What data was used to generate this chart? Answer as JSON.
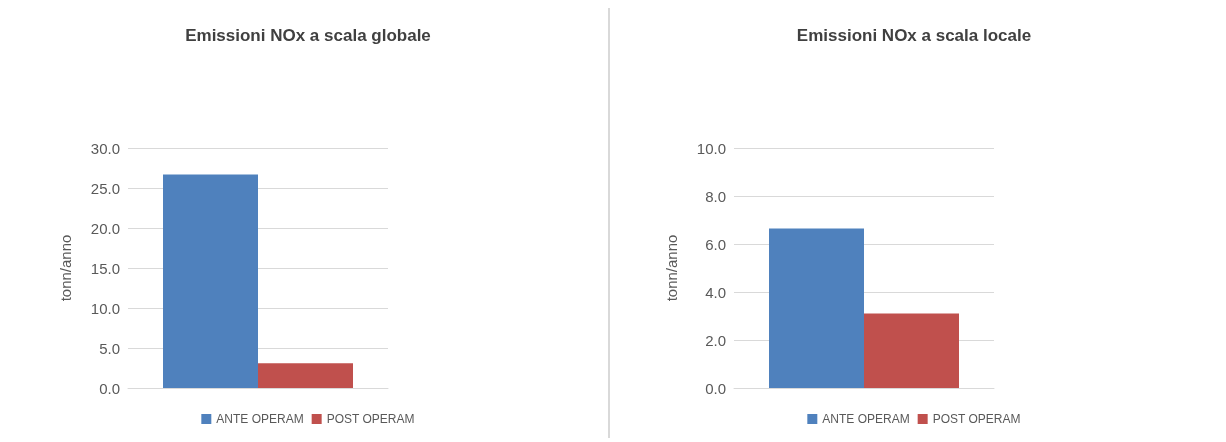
{
  "chart_data": [
    {
      "type": "bar",
      "title": "Emissioni NOx a scala globale",
      "ylabel": "tonn/anno",
      "categories": [
        null
      ],
      "series": [
        {
          "name": "ANTE OPERAM",
          "color": "#4f81bd",
          "values": [
            26.7
          ]
        },
        {
          "name": "POST OPERAM",
          "color": "#c0504d",
          "values": [
            3.1
          ]
        }
      ],
      "ylim": [
        0,
        30
      ],
      "yticks": [
        {
          "value": 0,
          "label": "0.0"
        },
        {
          "value": 5,
          "label": "5.0"
        },
        {
          "value": 10,
          "label": "10.0"
        },
        {
          "value": 15,
          "label": "15.0"
        },
        {
          "value": 20,
          "label": "20.0"
        },
        {
          "value": 25,
          "label": "25.0"
        },
        {
          "value": 30,
          "label": "30.0"
        }
      ],
      "grid": "y",
      "legend": "bottom"
    },
    {
      "type": "bar",
      "title": "Emissioni NOx a scala locale",
      "ylabel": "tonn/anno",
      "categories": [
        null
      ],
      "series": [
        {
          "name": "ANTE OPERAM",
          "color": "#4f81bd",
          "values": [
            6.65
          ]
        },
        {
          "name": "POST OPERAM",
          "color": "#c0504d",
          "values": [
            3.1
          ]
        }
      ],
      "ylim": [
        0,
        10
      ],
      "yticks": [
        {
          "value": 0,
          "label": "0.0"
        },
        {
          "value": 2,
          "label": "2.0"
        },
        {
          "value": 4,
          "label": "4.0"
        },
        {
          "value": 6,
          "label": "6.0"
        },
        {
          "value": 8,
          "label": "8.0"
        },
        {
          "value": 10,
          "label": "10.0"
        }
      ],
      "grid": "y",
      "legend": "bottom"
    }
  ]
}
